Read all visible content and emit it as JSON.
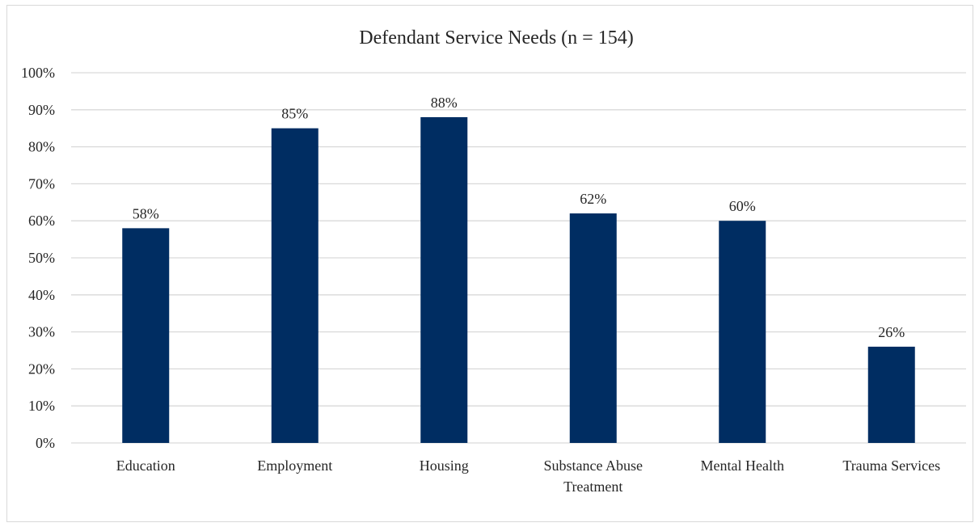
{
  "chart_data": {
    "type": "bar",
    "title": "Defendant Service Needs (n = 154)",
    "xlabel": "",
    "ylabel": "",
    "categories": [
      [
        "Education"
      ],
      [
        "Employment"
      ],
      [
        "Housing"
      ],
      [
        "Substance Abuse",
        "Treatment"
      ],
      [
        "Mental Health"
      ],
      [
        "Trauma Services"
      ]
    ],
    "values": [
      58,
      85,
      88,
      62,
      60,
      26
    ],
    "data_labels": [
      "58%",
      "85%",
      "88%",
      "62%",
      "60%",
      "26%"
    ],
    "ylim": [
      0,
      100
    ],
    "yticks": [
      "0%",
      "10%",
      "20%",
      "30%",
      "40%",
      "50%",
      "60%",
      "70%",
      "80%",
      "90%",
      "100%"
    ],
    "grid": true,
    "legend": "none",
    "colors": {
      "bar": "#002D62",
      "grid": "#d9d9d9",
      "text": "#262626"
    }
  }
}
